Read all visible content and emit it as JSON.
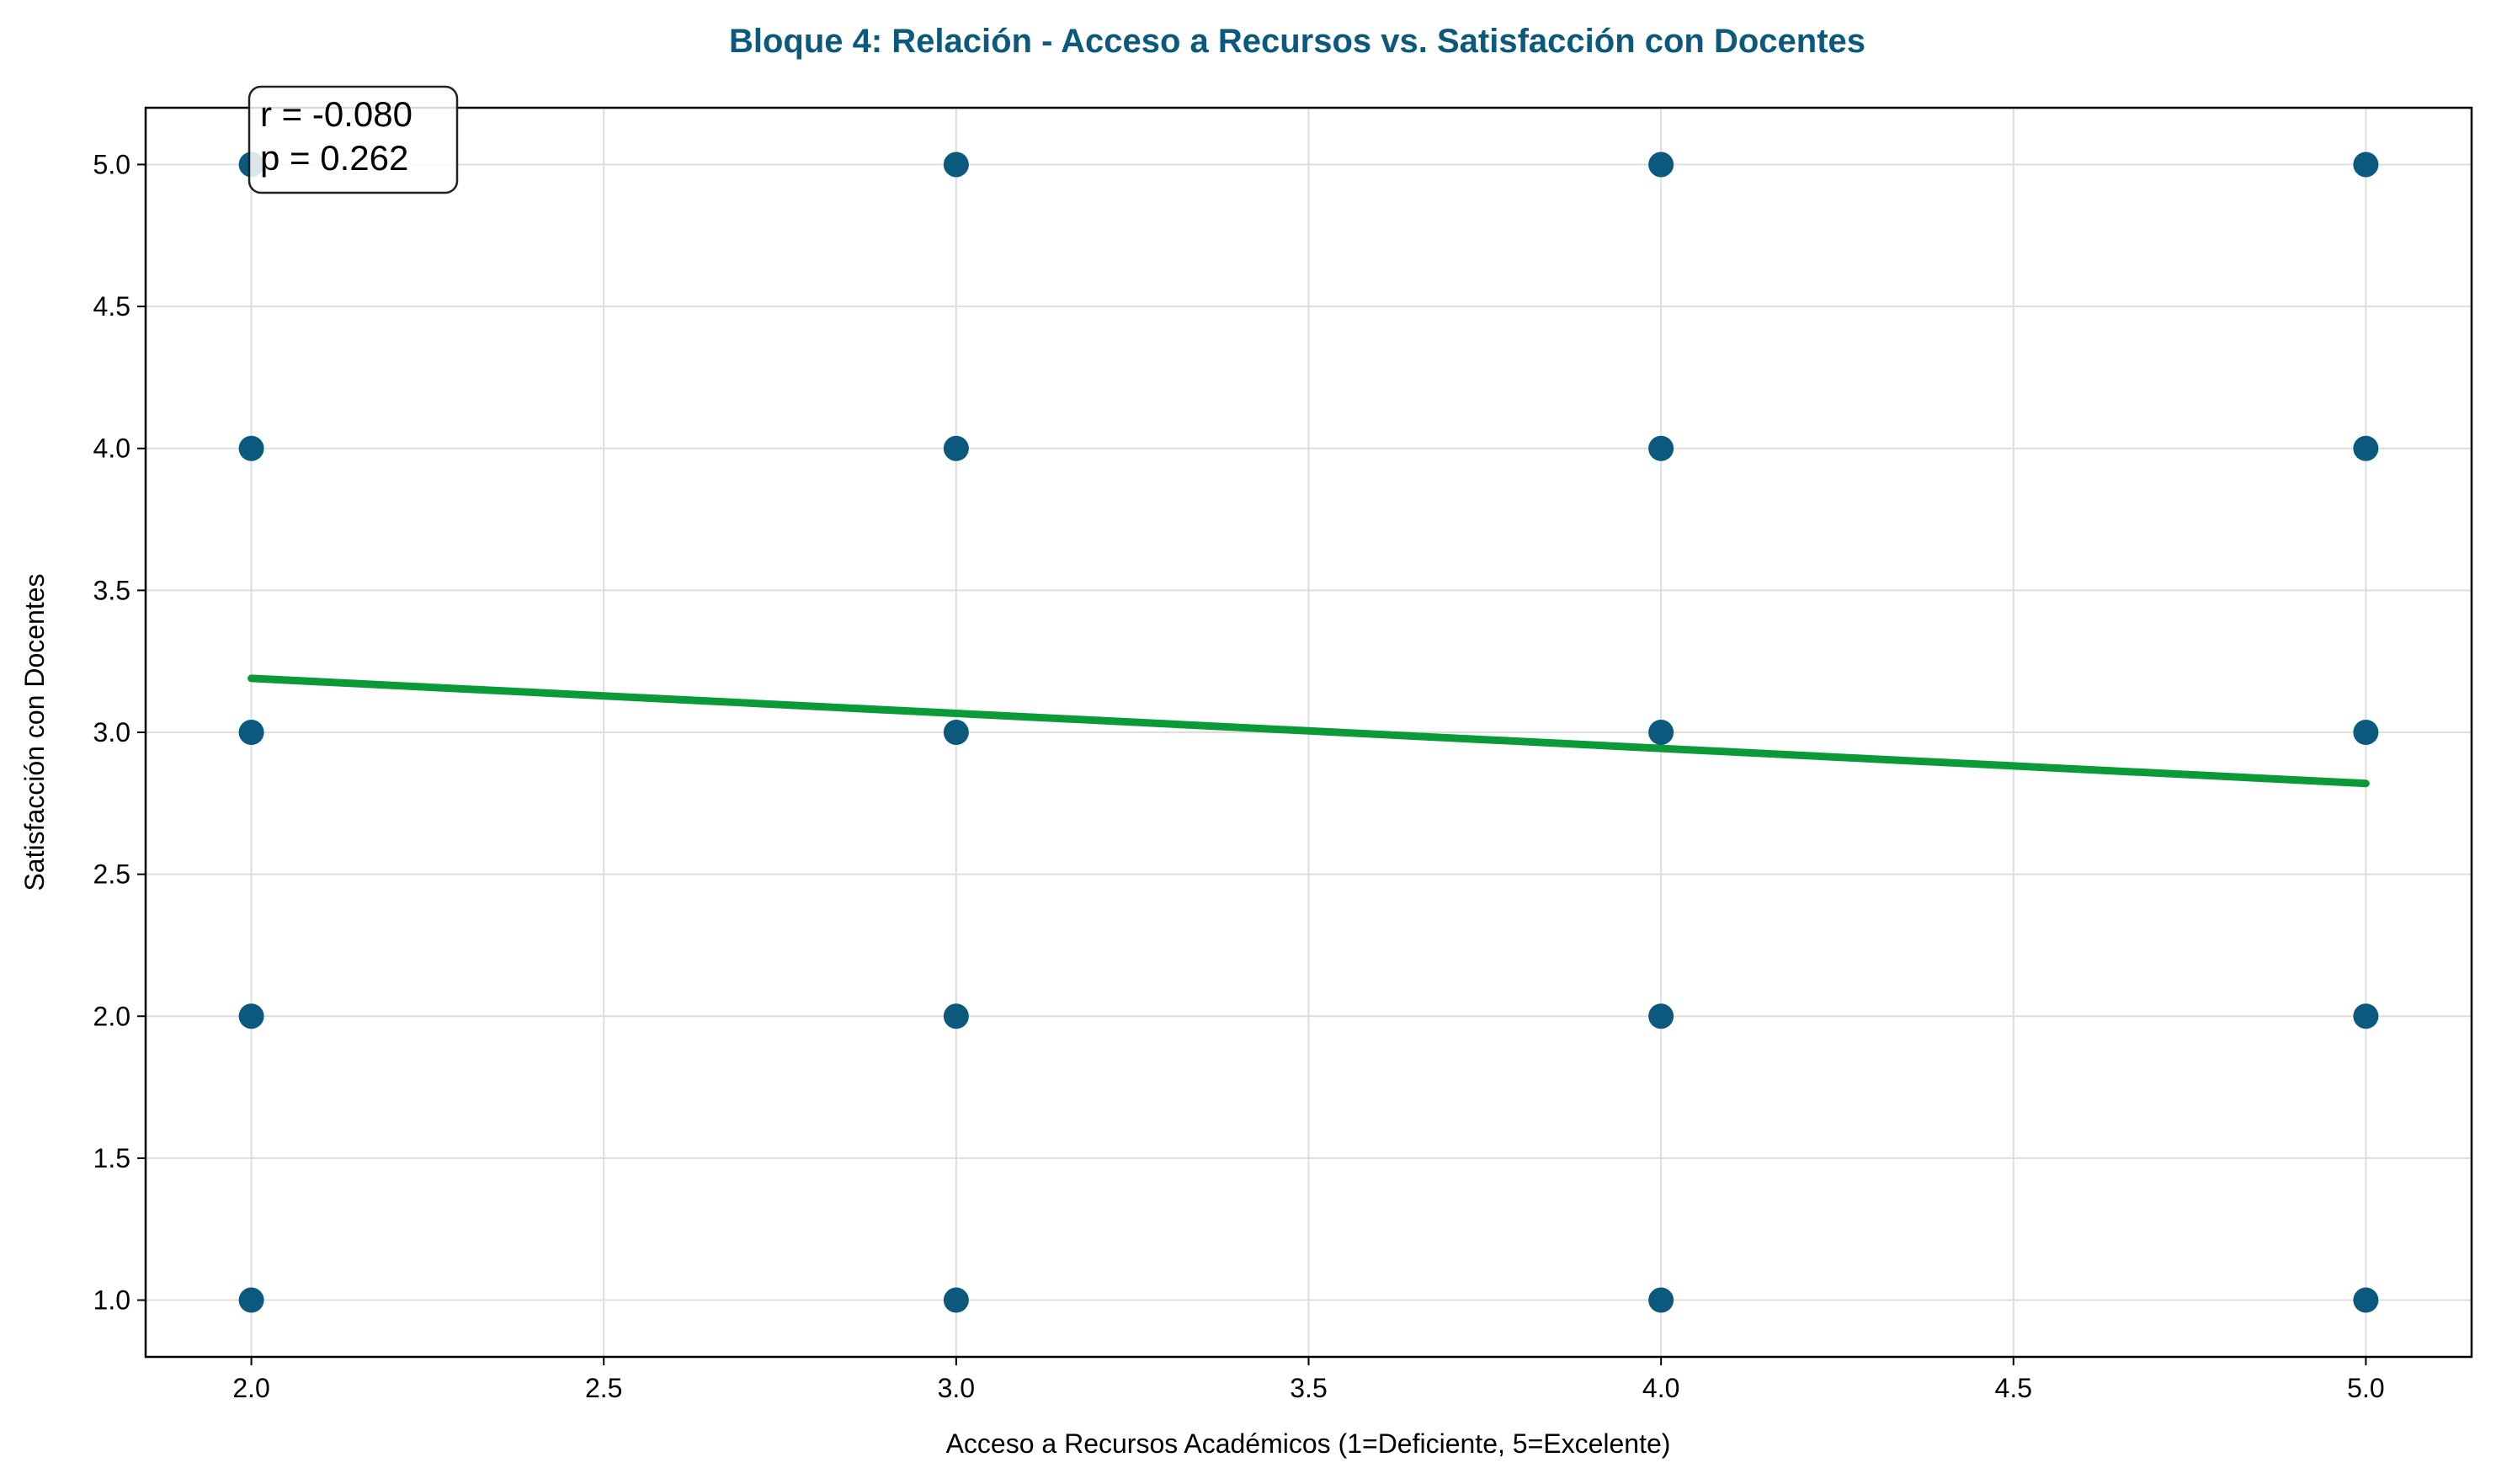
{
  "chart_data": {
    "type": "scatter",
    "title": "Bloque 4: Relación - Acceso a Recursos vs. Satisfacción con Docentes",
    "xlabel": "Acceso a Recursos Académicos (1=Deficiente, 5=Excelente)",
    "ylabel": "Satisfacción con Docentes",
    "xlim": [
      1.85,
      5.15
    ],
    "ylim": [
      0.8,
      5.2
    ],
    "xticks": [
      2.0,
      2.5,
      3.0,
      3.5,
      4.0,
      4.5,
      5.0
    ],
    "yticks": [
      1.0,
      1.5,
      2.0,
      2.5,
      3.0,
      3.5,
      4.0,
      4.5,
      5.0
    ],
    "grid": true,
    "points": [
      {
        "x": 2,
        "y": 1
      },
      {
        "x": 2,
        "y": 2
      },
      {
        "x": 2,
        "y": 3
      },
      {
        "x": 2,
        "y": 4
      },
      {
        "x": 2,
        "y": 5
      },
      {
        "x": 3,
        "y": 1
      },
      {
        "x": 3,
        "y": 2
      },
      {
        "x": 3,
        "y": 3
      },
      {
        "x": 3,
        "y": 4
      },
      {
        "x": 3,
        "y": 5
      },
      {
        "x": 4,
        "y": 1
      },
      {
        "x": 4,
        "y": 2
      },
      {
        "x": 4,
        "y": 3
      },
      {
        "x": 4,
        "y": 4
      },
      {
        "x": 4,
        "y": 5
      },
      {
        "x": 5,
        "y": 1
      },
      {
        "x": 5,
        "y": 2
      },
      {
        "x": 5,
        "y": 3
      },
      {
        "x": 5,
        "y": 4
      },
      {
        "x": 5,
        "y": 5
      }
    ],
    "trend_line": {
      "x": [
        2.0,
        5.0
      ],
      "y": [
        3.19,
        2.82
      ]
    },
    "annotation": {
      "r_text": "r = -0.080",
      "p_text": "p = 0.262"
    },
    "colors": {
      "title": "#0b5a7d",
      "points": "#0b5a7d",
      "trend": "#0a9b38",
      "grid": "#dddddd"
    }
  }
}
